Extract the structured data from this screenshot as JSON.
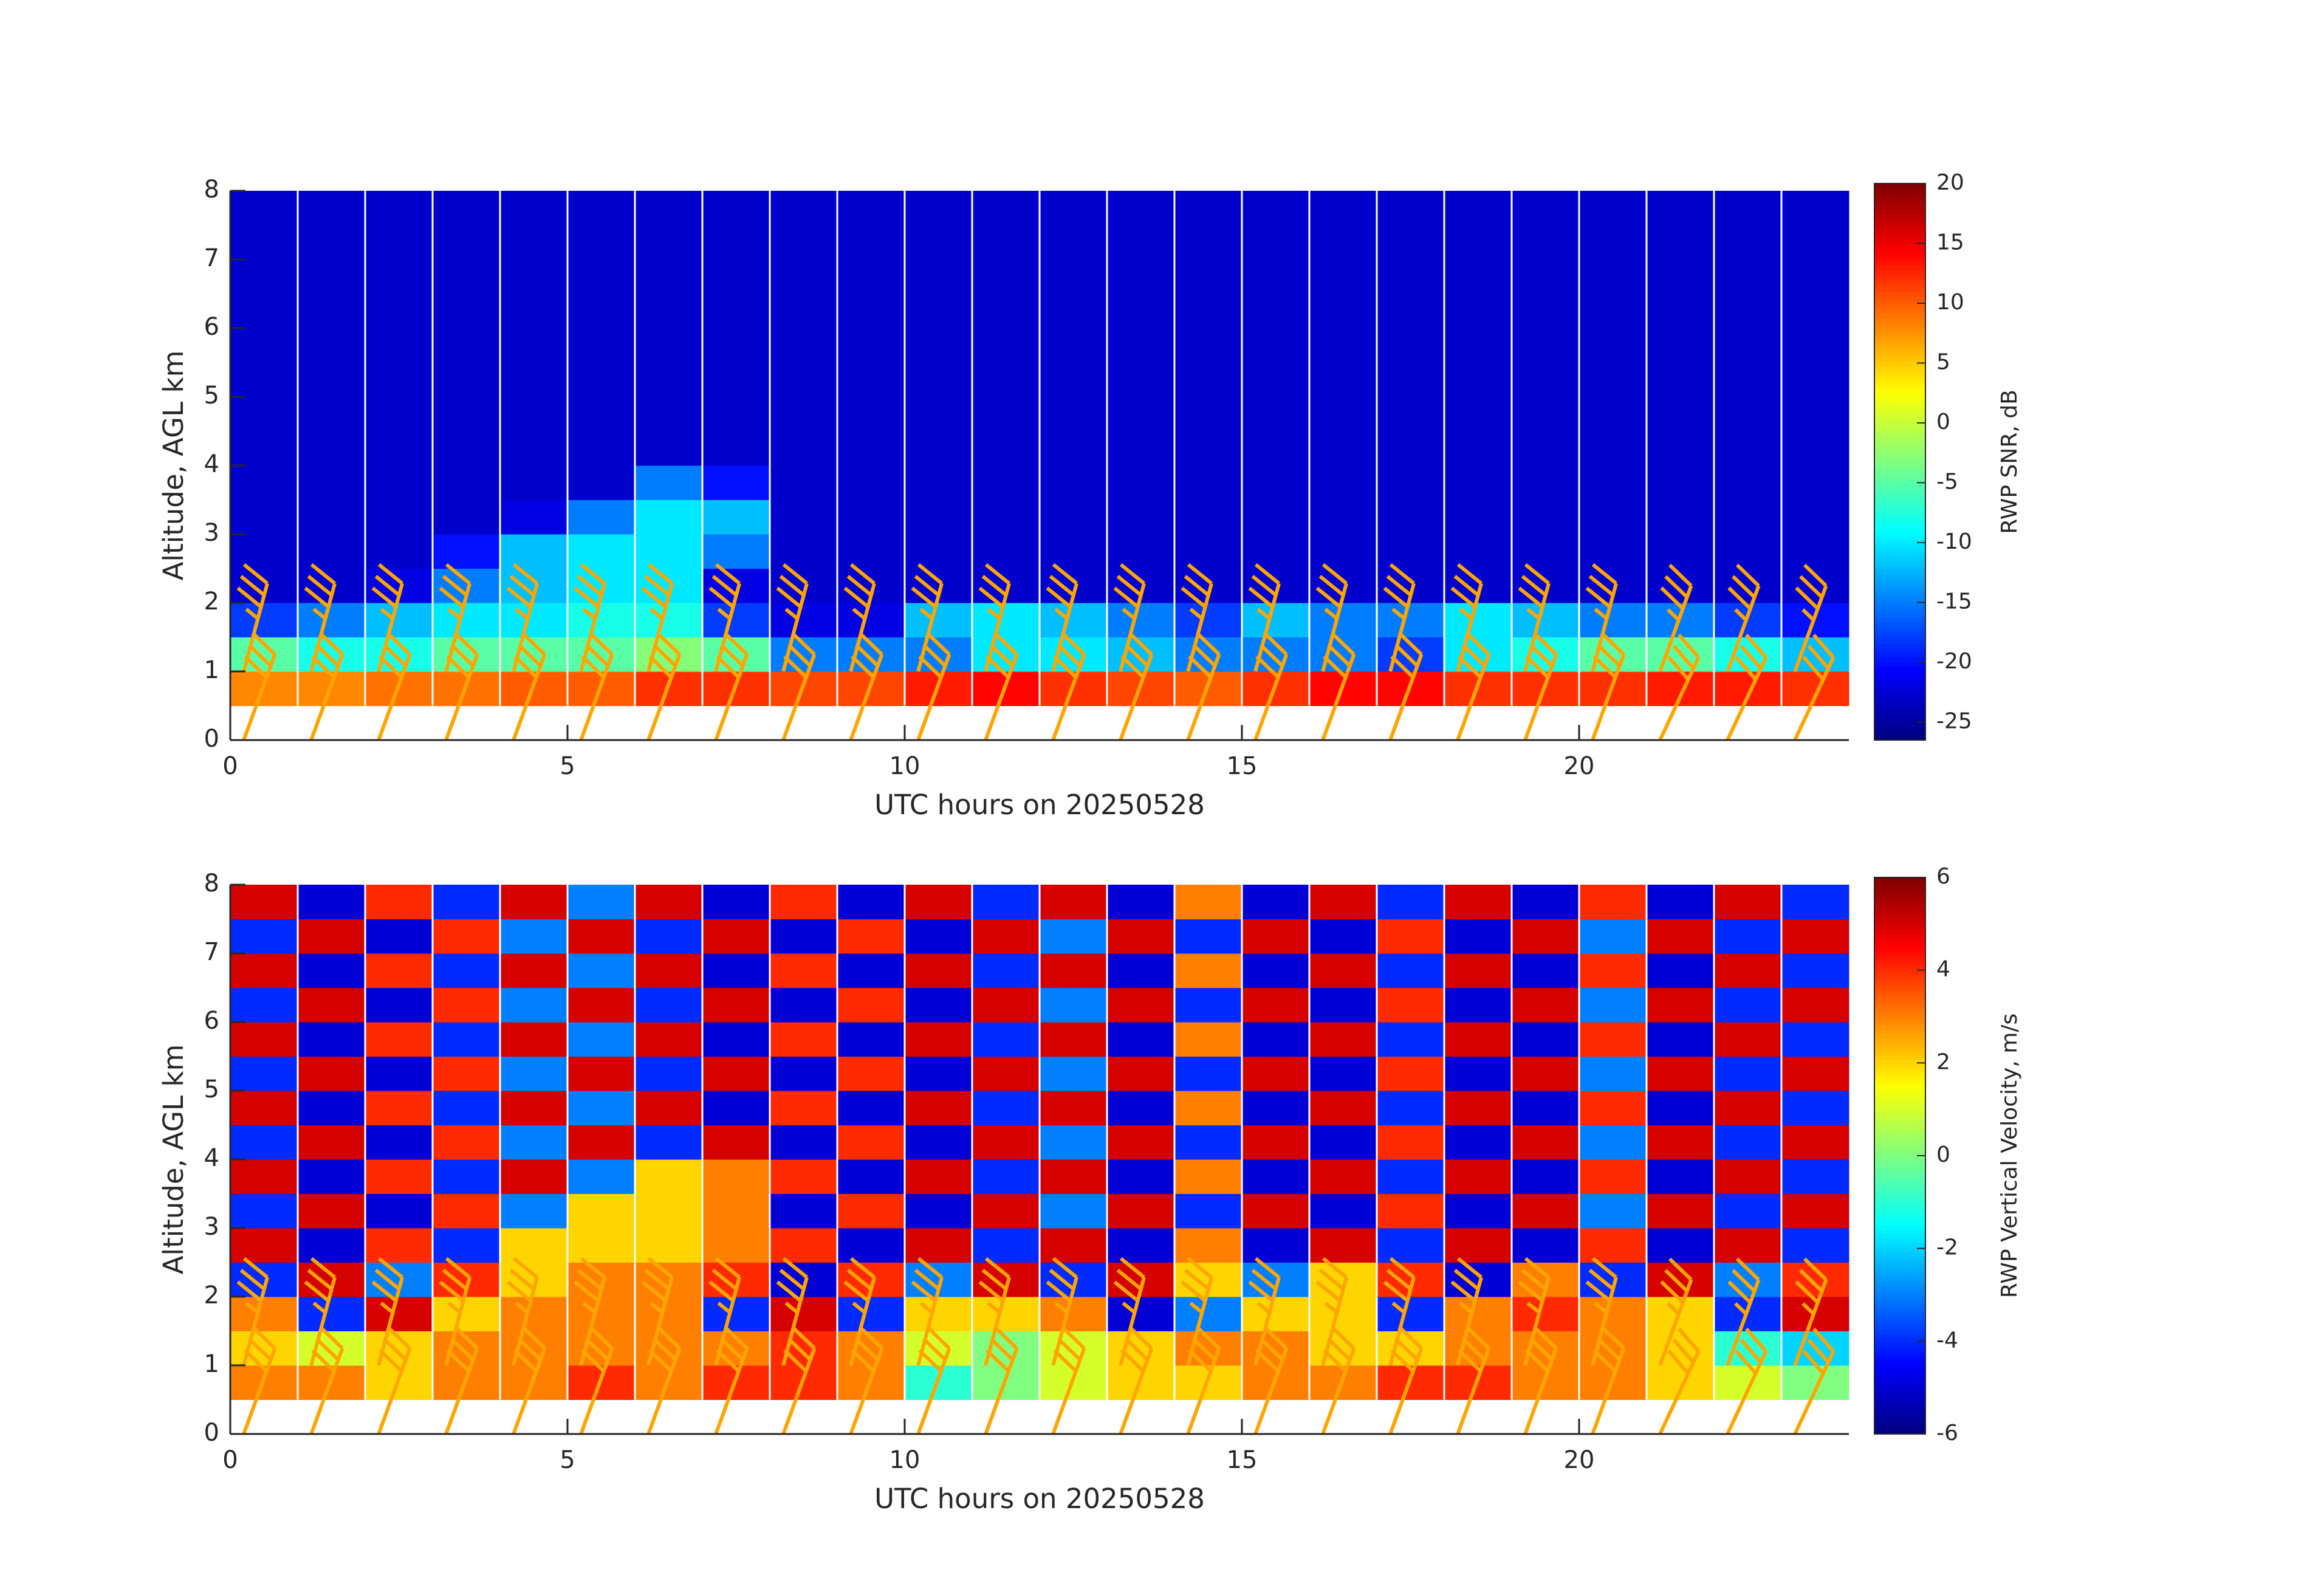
{
  "chart_data": [
    {
      "type": "heatmap",
      "xlabel": "UTC hours on 20250528",
      "ylabel": "Altitude, AGL km",
      "colorbar_label": "RWP SNR, dB",
      "xlim": [
        0,
        24
      ],
      "ylim": [
        0,
        8
      ],
      "xticks": [
        0,
        5,
        10,
        15,
        20
      ],
      "yticks": [
        0,
        1,
        2,
        3,
        4,
        5,
        6,
        7,
        8
      ],
      "clim": [
        -26.5,
        20
      ],
      "cticks": [
        -25,
        -20,
        -15,
        -10,
        -5,
        0,
        5,
        10,
        15,
        20
      ],
      "colormap": "jet",
      "xbins": [
        0,
        1,
        2,
        3,
        4,
        5,
        6,
        7,
        8,
        9,
        10,
        11,
        12,
        13,
        14,
        15,
        16,
        17,
        18,
        19,
        20,
        21,
        22,
        23,
        24
      ],
      "ybins": [
        0.5,
        1,
        1.5,
        2,
        2.5,
        3,
        3.5,
        4,
        4.5,
        5,
        5.5,
        6,
        6.5,
        7,
        7.5,
        8
      ],
      "z": [
        [
          8,
          8,
          9,
          9,
          10,
          10,
          12,
          12,
          11,
          11,
          13,
          14,
          12,
          11,
          10,
          12,
          14,
          14,
          12,
          12,
          12,
          13,
          13,
          12
        ],
        [
          -5,
          -8,
          -8,
          -5,
          -5,
          -5,
          -3,
          -5,
          -15,
          -15,
          -15,
          -10,
          -10,
          -12,
          -15,
          -15,
          -15,
          -18,
          -10,
          -8,
          -5,
          -5,
          -8,
          -12
        ],
        [
          -18,
          -15,
          -12,
          -10,
          -10,
          -8,
          -8,
          -18,
          -22,
          -22,
          -12,
          -10,
          -12,
          -15,
          -18,
          -12,
          -15,
          -15,
          -10,
          -12,
          -15,
          -15,
          -18,
          -20
        ],
        [
          -23,
          -23,
          -22,
          -15,
          -12,
          -10,
          -10,
          -22,
          -23,
          -23,
          -23,
          -23,
          -23,
          -23,
          -23,
          -23,
          -23,
          -23,
          -23,
          -23,
          -23,
          -23,
          -23,
          -23
        ],
        [
          -23,
          -23,
          -23,
          -20,
          -12,
          -10,
          -10,
          -15,
          -23,
          -23,
          -23,
          -23,
          -23,
          -23,
          -23,
          -23,
          -23,
          -23,
          -23,
          -23,
          -23,
          -23,
          -23,
          -23
        ],
        [
          -23,
          -23,
          -23,
          -23,
          -22,
          -15,
          -10,
          -12,
          -23,
          -23,
          -23,
          -23,
          -23,
          -23,
          -23,
          -23,
          -23,
          -23,
          -23,
          -23,
          -23,
          -23,
          -23,
          -23
        ],
        [
          -23,
          -23,
          -23,
          -23,
          -23,
          -23,
          -15,
          -20,
          -23,
          -23,
          -23,
          -23,
          -23,
          -23,
          -23,
          -23,
          -23,
          -23,
          -23,
          -23,
          -23,
          -23,
          -23,
          -23
        ],
        [
          -23,
          -23,
          -23,
          -23,
          -23,
          -23,
          -23,
          -23,
          -23,
          -23,
          -23,
          -23,
          -23,
          -23,
          -23,
          -23,
          -23,
          -23,
          -23,
          -23,
          -23,
          -23,
          -23,
          -23
        ],
        [
          -23,
          -23,
          -23,
          -23,
          -23,
          -23,
          -23,
          -23,
          -23,
          -23,
          -23,
          -23,
          -23,
          -23,
          -23,
          -23,
          -23,
          -23,
          -23,
          -23,
          -23,
          -23,
          -23,
          -23
        ],
        [
          -23,
          -23,
          -23,
          -23,
          -23,
          -23,
          -23,
          -23,
          -23,
          -23,
          -23,
          -23,
          -23,
          -23,
          -23,
          -23,
          -23,
          -23,
          -23,
          -23,
          -23,
          -23,
          -23,
          -23
        ],
        [
          -23,
          -23,
          -23,
          -23,
          -23,
          -23,
          -23,
          -23,
          -23,
          -23,
          -23,
          -23,
          -23,
          -23,
          -23,
          -23,
          -23,
          -23,
          -23,
          -23,
          -23,
          -23,
          -23,
          -23
        ],
        [
          -23,
          -23,
          -23,
          -23,
          -23,
          -23,
          -23,
          -23,
          -23,
          -23,
          -23,
          -23,
          -23,
          -23,
          -23,
          -23,
          -23,
          -23,
          -23,
          -23,
          -23,
          -23,
          -23,
          -23
        ],
        [
          -23,
          -23,
          -23,
          -23,
          -23,
          -23,
          -23,
          -23,
          -23,
          -23,
          -23,
          -23,
          -23,
          -23,
          -23,
          -23,
          -23,
          -23,
          -23,
          -23,
          -23,
          -23,
          -23,
          -23
        ],
        [
          -23,
          -23,
          -23,
          -23,
          -23,
          -23,
          -23,
          -23,
          -23,
          -23,
          -23,
          -23,
          -23,
          -23,
          -23,
          -23,
          -23,
          -23,
          -23,
          -23,
          -23,
          -23,
          -23,
          -23
        ],
        [
          -23,
          -23,
          -23,
          -23,
          -23,
          -23,
          -23,
          -23,
          -23,
          -23,
          -23,
          -23,
          -23,
          -23,
          -23,
          -23,
          -23,
          -23,
          -23,
          -23,
          -23,
          -23,
          -23,
          -23
        ]
      ],
      "barb_color": "#ffa500",
      "barbs": [
        {
          "alt": 0,
          "x": [
            0.2,
            1.2,
            2.2,
            3.2,
            4.2,
            5.2,
            6.2,
            7.2,
            8.2,
            9.2,
            10.2,
            11.2,
            12.2,
            13.2,
            14.2,
            15.2,
            16.2,
            17.2,
            18.2,
            19.2,
            20.2,
            21.2,
            22.2,
            23.2
          ],
          "speed": [
            30,
            30,
            30,
            30,
            30,
            30,
            30,
            30,
            30,
            30,
            30,
            30,
            30,
            30,
            30,
            30,
            30,
            30,
            30,
            30,
            30,
            30,
            30,
            30
          ],
          "dir": [
            20,
            20,
            20,
            20,
            20,
            20,
            20,
            20,
            20,
            20,
            20,
            20,
            20,
            20,
            20,
            20,
            20,
            20,
            20,
            20,
            20,
            25,
            25,
            25
          ]
        },
        {
          "alt": 1,
          "x": [
            0.2,
            1.2,
            2.2,
            3.2,
            4.2,
            5.2,
            6.2,
            7.2,
            8.2,
            9.2,
            10.2,
            11.2,
            12.2,
            13.2,
            14.2,
            15.2,
            16.2,
            17.2,
            18.2,
            19.2,
            20.2,
            21.2,
            22.2,
            23.2
          ],
          "speed": [
            35,
            35,
            35,
            35,
            35,
            35,
            35,
            35,
            35,
            35,
            35,
            35,
            35,
            35,
            35,
            35,
            35,
            35,
            35,
            35,
            35,
            35,
            35,
            35
          ],
          "dir": [
            15,
            15,
            15,
            15,
            15,
            15,
            15,
            15,
            15,
            15,
            15,
            15,
            15,
            15,
            15,
            15,
            15,
            15,
            15,
            15,
            15,
            20,
            20,
            20
          ]
        }
      ]
    },
    {
      "type": "heatmap",
      "xlabel": "UTC hours on 20250528",
      "ylabel": "Altitude, AGL km",
      "colorbar_label": "RWP Vertical Velocity, m/s",
      "xlim": [
        0,
        24
      ],
      "ylim": [
        0,
        8
      ],
      "xticks": [
        0,
        5,
        10,
        15,
        20
      ],
      "yticks": [
        0,
        1,
        2,
        3,
        4,
        5,
        6,
        7,
        8
      ],
      "clim": [
        -6,
        6
      ],
      "cticks": [
        -6,
        -4,
        -2,
        0,
        2,
        4,
        6
      ],
      "colormap": "jet",
      "xbins": [
        0,
        1,
        2,
        3,
        4,
        5,
        6,
        7,
        8,
        9,
        10,
        11,
        12,
        13,
        14,
        15,
        16,
        17,
        18,
        19,
        20,
        21,
        22,
        23,
        24
      ],
      "ybins": [
        0.5,
        1,
        1.5,
        2,
        2.5,
        3,
        3.5,
        4,
        4.5,
        5,
        5.5,
        6,
        6.5,
        7,
        7.5,
        8
      ],
      "z": [
        [
          3,
          3,
          2,
          3,
          3,
          4,
          3,
          4,
          4,
          3,
          -1,
          0,
          1,
          2,
          2,
          3,
          3,
          4,
          4,
          3,
          3,
          2,
          1,
          0
        ],
        [
          2,
          1,
          2,
          3,
          3,
          3,
          3,
          3,
          4,
          3,
          1,
          0,
          1,
          2,
          3,
          3,
          2,
          2,
          3,
          3,
          3,
          2,
          -1,
          -2
        ],
        [
          3,
          -4,
          5,
          2,
          3,
          3,
          3,
          -4,
          5,
          -4,
          2,
          2,
          3,
          -5,
          -3,
          2,
          2,
          -4,
          3,
          4,
          3,
          2,
          -4,
          5
        ],
        [
          -4,
          5,
          -3,
          4,
          2,
          3,
          3,
          4,
          -5,
          4,
          -3,
          5,
          -4,
          5,
          2,
          -3,
          2,
          4,
          -5,
          3,
          -4,
          5,
          -3,
          4
        ],
        [
          5,
          -5,
          4,
          -4,
          2,
          2,
          2,
          3,
          4,
          -5,
          5,
          -4,
          5,
          -5,
          3,
          -5,
          5,
          -4,
          5,
          -5,
          4,
          -5,
          5,
          -4
        ],
        [
          -4,
          5,
          -5,
          4,
          -3,
          2,
          2,
          3,
          -5,
          4,
          -5,
          5,
          -3,
          5,
          -4,
          5,
          -5,
          4,
          -5,
          5,
          -3,
          5,
          -4,
          5
        ],
        [
          5,
          -5,
          4,
          -4,
          5,
          -3,
          2,
          3,
          4,
          -5,
          5,
          -4,
          5,
          -5,
          3,
          -5,
          5,
          -4,
          5,
          -5,
          4,
          -5,
          5,
          -4
        ],
        [
          -4,
          5,
          -5,
          4,
          -3,
          5,
          -4,
          5,
          -5,
          4,
          -5,
          5,
          -3,
          5,
          -4,
          5,
          -5,
          4,
          -5,
          5,
          -3,
          5,
          -4,
          5
        ],
        [
          5,
          -5,
          4,
          -4,
          5,
          -3,
          5,
          -5,
          4,
          -5,
          5,
          -4,
          5,
          -5,
          3,
          -5,
          5,
          -4,
          5,
          -5,
          4,
          -5,
          5,
          -4
        ],
        [
          -4,
          5,
          -5,
          4,
          -3,
          5,
          -4,
          5,
          -5,
          4,
          -5,
          5,
          -3,
          5,
          -4,
          5,
          -5,
          4,
          -5,
          5,
          -3,
          5,
          -4,
          5
        ],
        [
          5,
          -5,
          4,
          -4,
          5,
          -3,
          5,
          -5,
          4,
          -5,
          5,
          -4,
          5,
          -5,
          3,
          -5,
          5,
          -4,
          5,
          -5,
          4,
          -5,
          5,
          -4
        ],
        [
          -4,
          5,
          -5,
          4,
          -3,
          5,
          -4,
          5,
          -5,
          4,
          -5,
          5,
          -3,
          5,
          -4,
          5,
          -5,
          4,
          -5,
          5,
          -3,
          5,
          -4,
          5
        ],
        [
          5,
          -5,
          4,
          -4,
          5,
          -3,
          5,
          -5,
          4,
          -5,
          5,
          -4,
          5,
          -5,
          3,
          -5,
          5,
          -4,
          5,
          -5,
          4,
          -5,
          5,
          -4
        ],
        [
          -4,
          5,
          -5,
          4,
          -3,
          5,
          -4,
          5,
          -5,
          4,
          -5,
          5,
          -3,
          5,
          -4,
          5,
          -5,
          4,
          -5,
          5,
          -3,
          5,
          -4,
          5
        ],
        [
          5,
          -5,
          4,
          -4,
          5,
          -3,
          5,
          -5,
          4,
          -5,
          5,
          -4,
          5,
          -5,
          3,
          -5,
          5,
          -4,
          5,
          -5,
          4,
          -5,
          5,
          -4
        ]
      ],
      "barb_color": "#ffa500",
      "barbs": [
        {
          "alt": 0,
          "x": [
            0.2,
            1.2,
            2.2,
            3.2,
            4.2,
            5.2,
            6.2,
            7.2,
            8.2,
            9.2,
            10.2,
            11.2,
            12.2,
            13.2,
            14.2,
            15.2,
            16.2,
            17.2,
            18.2,
            19.2,
            20.2,
            21.2,
            22.2,
            23.2
          ],
          "speed": [
            30,
            30,
            30,
            30,
            30,
            30,
            30,
            30,
            30,
            30,
            30,
            30,
            30,
            30,
            30,
            30,
            30,
            30,
            30,
            30,
            30,
            30,
            30,
            30
          ],
          "dir": [
            20,
            20,
            20,
            20,
            20,
            20,
            20,
            20,
            20,
            20,
            20,
            20,
            20,
            20,
            20,
            20,
            20,
            20,
            20,
            20,
            20,
            25,
            25,
            25
          ]
        },
        {
          "alt": 1,
          "x": [
            0.2,
            1.2,
            2.2,
            3.2,
            4.2,
            5.2,
            6.2,
            7.2,
            8.2,
            9.2,
            10.2,
            11.2,
            12.2,
            13.2,
            14.2,
            15.2,
            16.2,
            17.2,
            18.2,
            19.2,
            20.2,
            21.2,
            22.2,
            23.2
          ],
          "speed": [
            35,
            35,
            35,
            35,
            35,
            35,
            35,
            35,
            35,
            35,
            35,
            35,
            35,
            35,
            35,
            35,
            35,
            35,
            35,
            35,
            35,
            35,
            35,
            35
          ],
          "dir": [
            15,
            15,
            15,
            15,
            15,
            15,
            15,
            15,
            15,
            15,
            15,
            15,
            15,
            15,
            15,
            15,
            15,
            15,
            15,
            15,
            15,
            20,
            20,
            20
          ]
        }
      ]
    }
  ]
}
